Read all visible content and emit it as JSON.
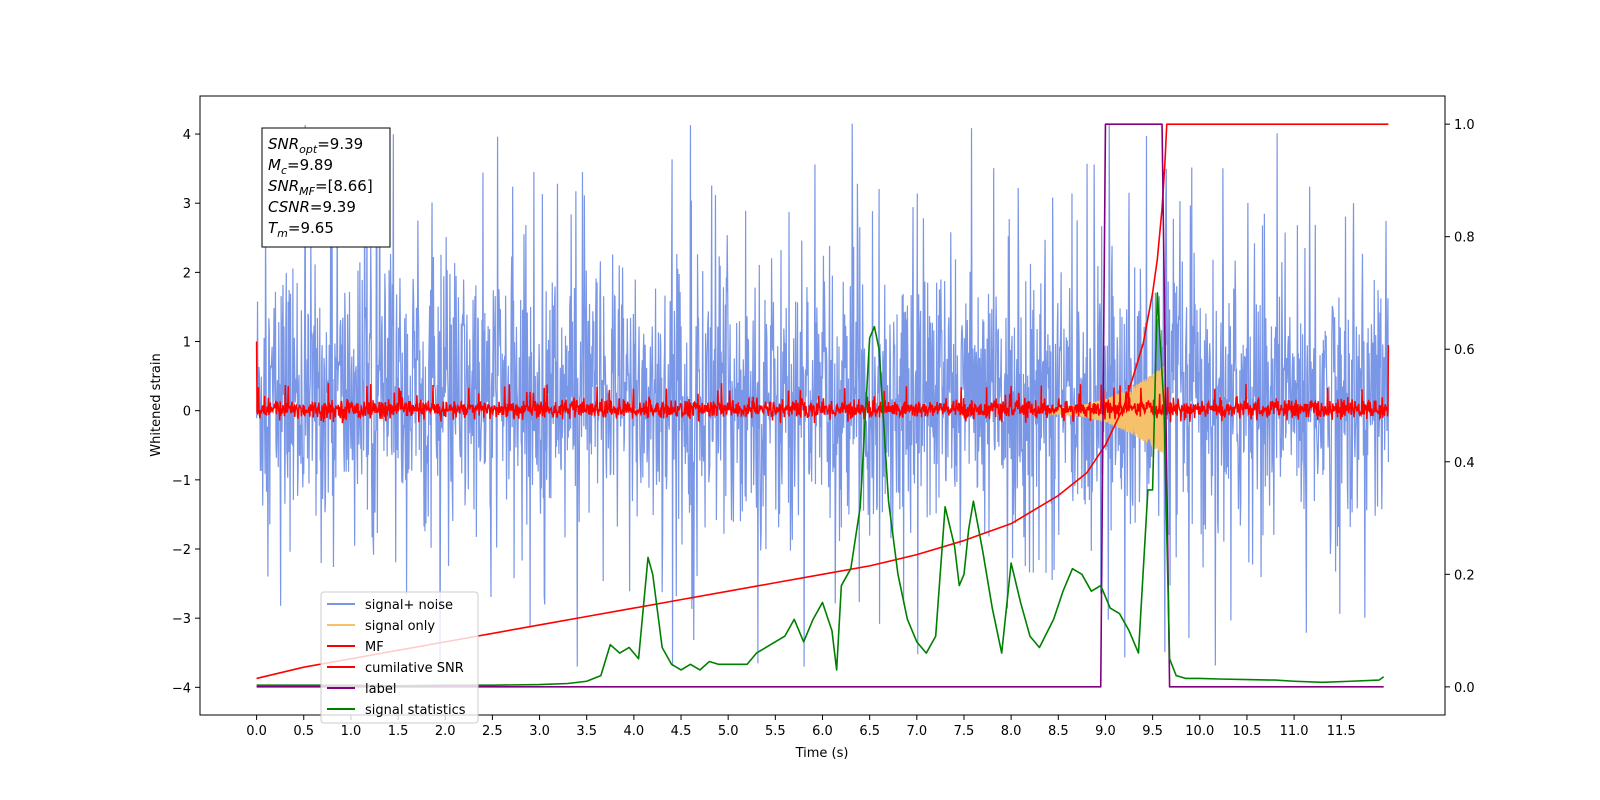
{
  "chart_data": {
    "type": "line",
    "title": "",
    "xlabel": "Time (s)",
    "ylabel": "Whitened strain",
    "x_ticks": [
      "0.0",
      "0.5",
      "1.0",
      "1.5",
      "2.0",
      "2.5",
      "3.0",
      "3.5",
      "4.0",
      "4.5",
      "5.0",
      "5.5",
      "6.0",
      "6.5",
      "7.0",
      "7.5",
      "8.0",
      "8.5",
      "9.0",
      "9.5",
      "10.0",
      "10.5",
      "11.0",
      "11.5"
    ],
    "x_tick_values": [
      0,
      0.5,
      1,
      1.5,
      2,
      2.5,
      3,
      3.5,
      4,
      4.5,
      5,
      5.5,
      6,
      6.5,
      7,
      7.5,
      8,
      8.5,
      9,
      9.5,
      10,
      10.5,
      11,
      11.5
    ],
    "xlim": [
      -0.6,
      12.6
    ],
    "x_data_range": [
      0,
      12
    ],
    "ylim_left": [
      -4.4,
      4.55
    ],
    "y_ticks_left": [
      "4",
      "3",
      "2",
      "1",
      "0",
      "−1",
      "−2",
      "−3",
      "−4"
    ],
    "y_tick_values_left": [
      4,
      3,
      2,
      1,
      0,
      -1,
      -2,
      -3,
      -4
    ],
    "ylim_right": [
      -0.05,
      1.05
    ],
    "y_ticks_right": [
      "1.0",
      "0.8",
      "0.6",
      "0.4",
      "0.2",
      "0.0"
    ],
    "y_tick_values_right": [
      1.0,
      0.8,
      0.6,
      0.4,
      0.2,
      0.0
    ],
    "grid": false,
    "legend_position": "lower-left",
    "annotations": [
      {
        "base": "SNR",
        "sub": "opt",
        "value": "=9.39"
      },
      {
        "base": "M",
        "sub": "c",
        "value": "=9.89"
      },
      {
        "base": "SNR",
        "sub": "MF",
        "value": "=[8.66]"
      },
      {
        "base": "CSNR",
        "sub": "",
        "value": "=9.39"
      },
      {
        "base": "T",
        "sub": "m",
        "value": "=9.65"
      }
    ],
    "series": [
      {
        "name": "signal+ noise",
        "color": "#7a96e6",
        "axis": "left",
        "kind": "noise",
        "band": [
          -2.0,
          2.4
        ],
        "spike_range": [
          -3.7,
          4.15
        ]
      },
      {
        "name": "signal only",
        "color": "#f5c26b",
        "axis": "left",
        "kind": "chirp",
        "x_range": [
          8.4,
          9.62
        ],
        "amplitude_range": [
          0.05,
          0.65
        ]
      },
      {
        "name": "MF",
        "color": "#ff0000",
        "axis": "left",
        "kind": "noise",
        "band": [
          -0.15,
          0.2
        ],
        "spike_range": [
          -0.18,
          0.4
        ],
        "endpoints": [
          1.0,
          0.95
        ]
      },
      {
        "name": "cumilative SNR",
        "color": "#ff0000",
        "axis": "right",
        "x": [
          0,
          0.5,
          1,
          1.5,
          2,
          2.5,
          3,
          3.5,
          4,
          4.5,
          5,
          5.5,
          6,
          6.5,
          7,
          7.5,
          8,
          8.5,
          8.8,
          9.0,
          9.2,
          9.4,
          9.5,
          9.55,
          9.6,
          9.63,
          9.65,
          12.0
        ],
        "values": [
          0.015,
          0.035,
          0.05,
          0.065,
          0.08,
          0.095,
          0.11,
          0.125,
          0.14,
          0.155,
          0.17,
          0.185,
          0.2,
          0.215,
          0.235,
          0.26,
          0.29,
          0.34,
          0.38,
          0.43,
          0.5,
          0.61,
          0.7,
          0.76,
          0.85,
          0.93,
          1.0,
          1.0
        ]
      },
      {
        "name": "label",
        "color": "#800080",
        "axis": "right",
        "x": [
          0,
          8.95,
          9.0,
          9.6,
          9.68,
          11.95
        ],
        "values": [
          0,
          0,
          1,
          1,
          0,
          0
        ]
      },
      {
        "name": "signal statistics",
        "color": "#008000",
        "axis": "right",
        "x": [
          0,
          0.5,
          1.0,
          1.5,
          2.0,
          2.5,
          3.0,
          3.3,
          3.5,
          3.65,
          3.75,
          3.85,
          3.95,
          4.05,
          4.15,
          4.2,
          4.3,
          4.4,
          4.5,
          4.6,
          4.7,
          4.8,
          4.9,
          5.0,
          5.2,
          5.3,
          5.4,
          5.6,
          5.7,
          5.8,
          5.9,
          6.0,
          6.1,
          6.15,
          6.2,
          6.3,
          6.4,
          6.5,
          6.55,
          6.6,
          6.7,
          6.8,
          6.9,
          7.0,
          7.1,
          7.2,
          7.3,
          7.4,
          7.45,
          7.5,
          7.55,
          7.6,
          7.7,
          7.8,
          7.9,
          8.0,
          8.1,
          8.2,
          8.3,
          8.45,
          8.55,
          8.65,
          8.75,
          8.85,
          8.95,
          9.05,
          9.15,
          9.25,
          9.35,
          9.45,
          9.5,
          9.55,
          9.62,
          9.68,
          9.75,
          9.85,
          10.0,
          10.2,
          10.5,
          10.8,
          11.0,
          11.3,
          11.6,
          11.9,
          11.95
        ],
        "values": [
          0.003,
          0.003,
          0.003,
          0.002,
          0.003,
          0.003,
          0.004,
          0.006,
          0.01,
          0.02,
          0.075,
          0.06,
          0.07,
          0.05,
          0.23,
          0.2,
          0.07,
          0.04,
          0.03,
          0.04,
          0.03,
          0.045,
          0.04,
          0.04,
          0.04,
          0.06,
          0.07,
          0.09,
          0.12,
          0.08,
          0.12,
          0.15,
          0.1,
          0.03,
          0.18,
          0.21,
          0.32,
          0.62,
          0.64,
          0.6,
          0.33,
          0.2,
          0.12,
          0.08,
          0.06,
          0.09,
          0.32,
          0.25,
          0.18,
          0.2,
          0.28,
          0.33,
          0.24,
          0.14,
          0.06,
          0.22,
          0.15,
          0.09,
          0.07,
          0.12,
          0.17,
          0.21,
          0.2,
          0.17,
          0.18,
          0.14,
          0.13,
          0.1,
          0.06,
          0.35,
          0.35,
          0.7,
          0.5,
          0.05,
          0.02,
          0.015,
          0.015,
          0.014,
          0.013,
          0.012,
          0.01,
          0.008,
          0.01,
          0.012,
          0.018
        ]
      }
    ]
  }
}
